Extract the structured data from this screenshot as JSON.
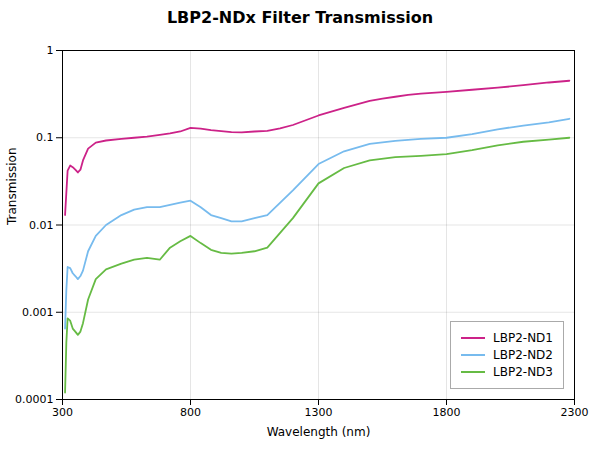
{
  "chart_data": {
    "type": "line",
    "title": "LBP2-NDx Filter Transmission",
    "xlabel": "Wavelength (nm)",
    "ylabel": "Transmission",
    "series": [
      {
        "name": "LBP2-ND1",
        "color": "#CC2288",
        "x": [
          310,
          320,
          330,
          340,
          350,
          360,
          370,
          380,
          400,
          430,
          470,
          530,
          580,
          630,
          680,
          720,
          760,
          800,
          840,
          880,
          920,
          960,
          1000,
          1050,
          1100,
          1150,
          1200,
          1300,
          1400,
          1500,
          1550,
          1600,
          1650,
          1700,
          1800,
          1900,
          2000,
          2100,
          2200,
          2280
        ],
        "values": [
          0.013,
          0.042,
          0.048,
          0.046,
          0.043,
          0.04,
          0.043,
          0.055,
          0.075,
          0.088,
          0.093,
          0.097,
          0.1,
          0.103,
          0.108,
          0.112,
          0.118,
          0.13,
          0.127,
          0.122,
          0.119,
          0.116,
          0.115,
          0.118,
          0.12,
          0.128,
          0.14,
          0.18,
          0.22,
          0.265,
          0.28,
          0.295,
          0.31,
          0.32,
          0.335,
          0.355,
          0.375,
          0.4,
          0.43,
          0.45
        ]
      },
      {
        "name": "LBP2-ND2",
        "color": "#77BBEE",
        "x": [
          310,
          315,
          320,
          330,
          340,
          350,
          360,
          370,
          380,
          400,
          430,
          470,
          530,
          580,
          630,
          680,
          720,
          760,
          800,
          840,
          880,
          920,
          960,
          1000,
          1050,
          1100,
          1200,
          1300,
          1400,
          1500,
          1600,
          1700,
          1800,
          1900,
          2000,
          2100,
          2200,
          2280
        ],
        "values": [
          0.00065,
          0.0018,
          0.0033,
          0.0032,
          0.0028,
          0.0026,
          0.0024,
          0.0026,
          0.003,
          0.005,
          0.0075,
          0.01,
          0.013,
          0.015,
          0.016,
          0.016,
          0.017,
          0.018,
          0.019,
          0.016,
          0.013,
          0.012,
          0.011,
          0.011,
          0.012,
          0.013,
          0.025,
          0.05,
          0.07,
          0.085,
          0.092,
          0.097,
          0.1,
          0.11,
          0.125,
          0.138,
          0.15,
          0.165
        ]
      },
      {
        "name": "LBP2-ND3",
        "color": "#66BB44",
        "x": [
          310,
          315,
          320,
          330,
          340,
          350,
          360,
          370,
          380,
          400,
          430,
          470,
          530,
          580,
          630,
          680,
          720,
          760,
          800,
          840,
          880,
          920,
          960,
          1000,
          1050,
          1100,
          1200,
          1300,
          1400,
          1500,
          1600,
          1700,
          1800,
          1900,
          2000,
          2100,
          2200,
          2280
        ],
        "values": [
          0.00012,
          0.00045,
          0.00085,
          0.0008,
          0.00065,
          0.0006,
          0.00055,
          0.0006,
          0.00075,
          0.0014,
          0.0024,
          0.0031,
          0.0036,
          0.004,
          0.0042,
          0.004,
          0.0055,
          0.0065,
          0.0075,
          0.0062,
          0.0052,
          0.0048,
          0.0047,
          0.0048,
          0.005,
          0.0055,
          0.012,
          0.03,
          0.045,
          0.055,
          0.06,
          0.062,
          0.065,
          0.072,
          0.082,
          0.09,
          0.095,
          0.1
        ]
      }
    ],
    "xlim": [
      300,
      2300
    ],
    "xticks": [
      300,
      800,
      1300,
      1800,
      2300
    ],
    "ylim": [
      0.0001,
      1
    ],
    "yticks": [
      0.0001,
      0.001,
      0.01,
      0.1,
      1
    ],
    "log": "y",
    "grid": true,
    "legend": "lower right"
  }
}
